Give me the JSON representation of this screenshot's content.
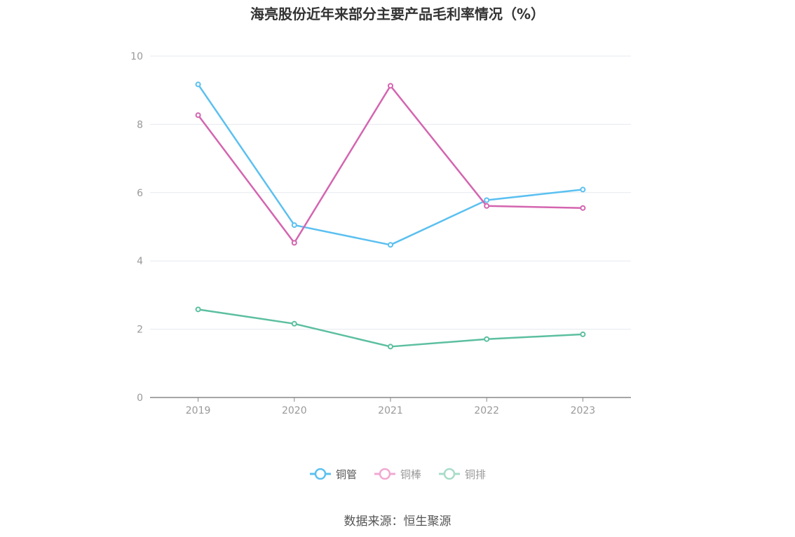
{
  "title": "海亮股份近年来部分主要产品毛利率情况（%）",
  "source": "数据来源：恒生聚源",
  "chart_data": {
    "type": "line",
    "title": "海亮股份近年来部分主要产品毛利率情况（%）",
    "categories": [
      "2019",
      "2020",
      "2021",
      "2022",
      "2023"
    ],
    "ylim": [
      0,
      10
    ],
    "yticks": [
      0,
      2,
      4,
      6,
      8,
      10
    ],
    "grid": true,
    "legend_position": "bottom",
    "series": [
      {
        "name": "铜管",
        "color": "#5bc0f0",
        "values": [
          9.17,
          5.05,
          4.47,
          5.78,
          6.09
        ]
      },
      {
        "name": "铜棒",
        "color": "#d465b0",
        "values": [
          8.27,
          4.53,
          9.13,
          5.61,
          5.55
        ]
      },
      {
        "name": "铜排",
        "color": "#5cbfa0",
        "values": [
          2.58,
          2.16,
          1.49,
          1.71,
          1.85
        ]
      }
    ]
  },
  "legend": [
    {
      "label": "铜管",
      "color": "#5bc0f0",
      "active": true
    },
    {
      "label": "铜棒",
      "color": "#f0a8d0",
      "active": false
    },
    {
      "label": "铜排",
      "color": "#a8dcc8",
      "active": false
    }
  ]
}
